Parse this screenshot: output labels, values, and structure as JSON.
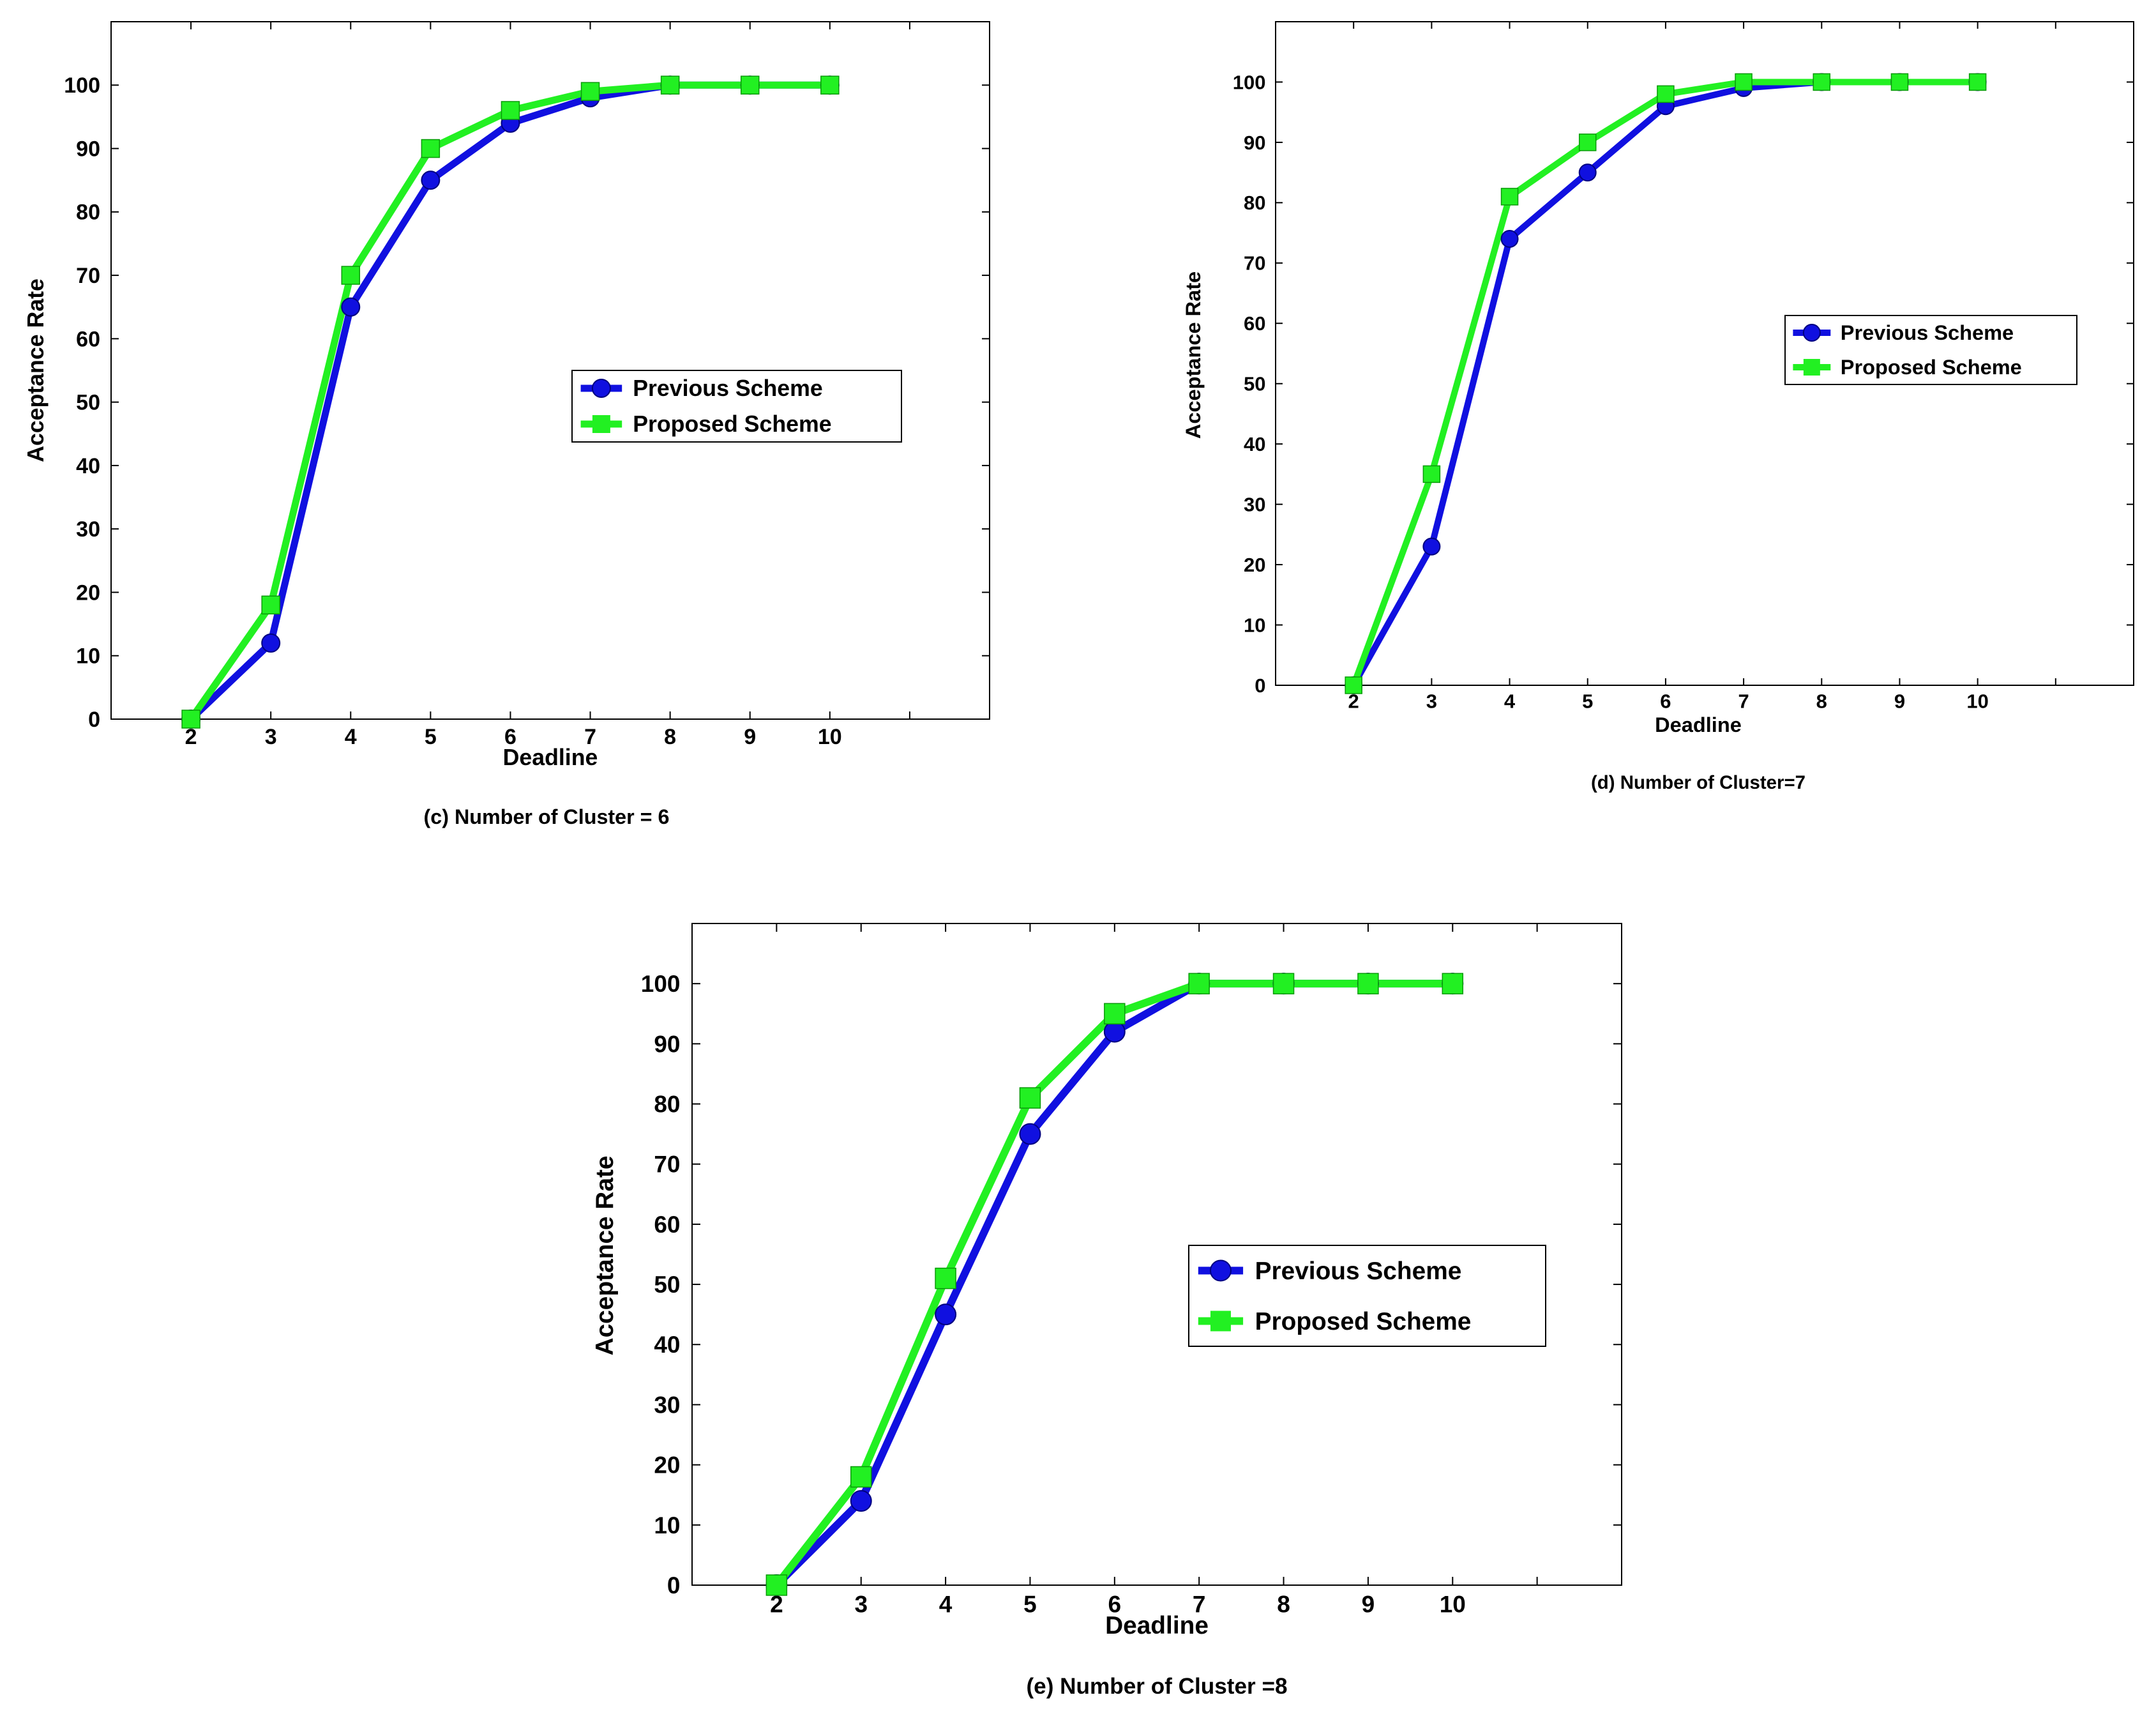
{
  "chart_data": [
    {
      "type": "line",
      "id": "c",
      "caption": "(c) Number of Cluster = 6",
      "xlabel": "Deadline",
      "ylabel": "Acceptance Rate",
      "x": [
        2,
        3,
        4,
        5,
        6,
        7,
        8,
        9,
        10
      ],
      "xlim": [
        1,
        12
      ],
      "ylim": [
        0,
        110
      ],
      "xticks": [
        "2",
        "3",
        "4",
        "5",
        "6",
        "7",
        "8",
        "9",
        "10"
      ],
      "yticks": [
        "0",
        "10",
        "20",
        "30",
        "40",
        "50",
        "60",
        "70",
        "80",
        "90",
        "100"
      ],
      "legend_position": "center-right",
      "series": [
        {
          "name": "Previous Scheme",
          "color": "#1010e0",
          "marker": "circle",
          "values": [
            0,
            12,
            65,
            85,
            94,
            98,
            100,
            100,
            100
          ]
        },
        {
          "name": "Proposed Scheme",
          "color": "#22f022",
          "marker": "square",
          "values": [
            0,
            18,
            70,
            90,
            96,
            99,
            100,
            100,
            100
          ]
        }
      ]
    },
    {
      "type": "line",
      "id": "d",
      "caption": "(d) Number of Cluster=7",
      "xlabel": "Deadline",
      "ylabel": "Acceptance Rate",
      "x": [
        2,
        3,
        4,
        5,
        6,
        7,
        8,
        9,
        10
      ],
      "xlim": [
        1,
        12
      ],
      "ylim": [
        0,
        110
      ],
      "xticks": [
        "2",
        "3",
        "4",
        "5",
        "6",
        "7",
        "8",
        "9",
        "10"
      ],
      "yticks": [
        "0",
        "10",
        "20",
        "30",
        "40",
        "50",
        "60",
        "70",
        "80",
        "90",
        "100"
      ],
      "legend_position": "center-right",
      "series": [
        {
          "name": "Previous Scheme",
          "color": "#1010e0",
          "marker": "circle",
          "values": [
            0,
            23,
            74,
            85,
            96,
            99,
            100,
            100,
            100
          ]
        },
        {
          "name": "Proposed Scheme",
          "color": "#22f022",
          "marker": "square",
          "values": [
            0,
            35,
            81,
            90,
            98,
            100,
            100,
            100,
            100
          ]
        }
      ]
    },
    {
      "type": "line",
      "id": "e",
      "caption": "(e) Number of Cluster =8",
      "xlabel": "Deadline",
      "ylabel": "Acceptance Rate",
      "x": [
        2,
        3,
        4,
        5,
        6,
        7,
        8,
        9,
        10
      ],
      "xlim": [
        1,
        12
      ],
      "ylim": [
        0,
        110
      ],
      "xticks": [
        "2",
        "3",
        "4",
        "5",
        "6",
        "7",
        "8",
        "9",
        "10"
      ],
      "yticks": [
        "0",
        "10",
        "20",
        "30",
        "40",
        "50",
        "60",
        "70",
        "80",
        "90",
        "100"
      ],
      "legend_position": "center-right",
      "series": [
        {
          "name": "Previous Scheme",
          "color": "#1010e0",
          "marker": "circle",
          "values": [
            0,
            14,
            45,
            75,
            92,
            100,
            100,
            100,
            100
          ]
        },
        {
          "name": "Proposed Scheme",
          "color": "#22f022",
          "marker": "square",
          "values": [
            0,
            18,
            51,
            81,
            95,
            100,
            100,
            100,
            100
          ]
        }
      ]
    }
  ]
}
